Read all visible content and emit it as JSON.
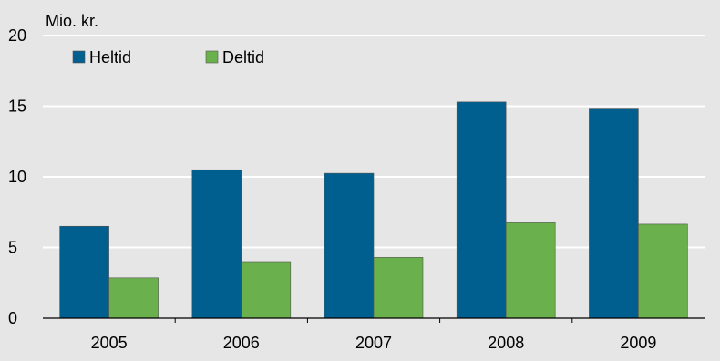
{
  "chart_data": {
    "type": "bar",
    "unit_label": "Mio. kr.",
    "categories": [
      "2005",
      "2006",
      "2007",
      "2008",
      "2009"
    ],
    "series": [
      {
        "name": "Heltid",
        "color": "#005f8f",
        "values": [
          6.5,
          10.5,
          10.25,
          15.3,
          14.8
        ]
      },
      {
        "name": "Deltid",
        "color": "#6ab04c",
        "values": [
          2.85,
          4.0,
          4.3,
          6.75,
          6.65
        ]
      }
    ],
    "ylim": [
      0,
      20
    ],
    "yticks": [
      0,
      5,
      10,
      15,
      20
    ],
    "grid": true,
    "legend_position": "top-left",
    "background_color": "#e6e6e6",
    "grid_color": "#ffffff"
  }
}
